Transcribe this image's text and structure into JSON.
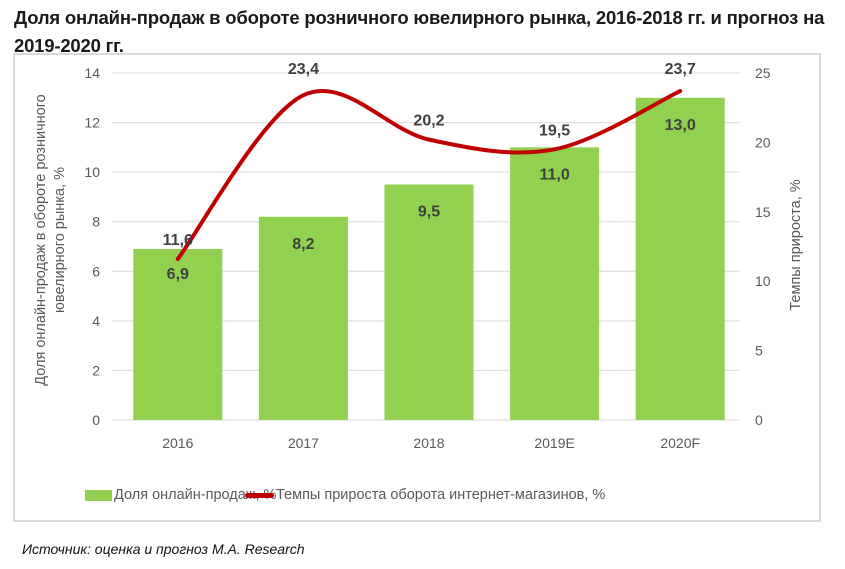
{
  "title": "Доля онлайн-продаж в обороте розничного ювелирного рынка, 2016-2018 гг. и прогноз на 2019-2020 гг.",
  "source": "Источник: оценка и прогноз М.А. Research",
  "colors": {
    "bar": "#92d050",
    "line": "#c00000",
    "grid": "#d9d9d9",
    "text": "#595959",
    "label": "#404040"
  },
  "chart_data": {
    "type": "bar",
    "categories": [
      "2016",
      "2017",
      "2018",
      "2019E",
      "2020F"
    ],
    "series": [
      {
        "name": "Доля онлайн-продаж, %",
        "type": "bar",
        "axis": "left",
        "values": [
          6.9,
          8.2,
          9.5,
          11.0,
          13.0
        ],
        "labels": [
          "6,9",
          "8,2",
          "9,5",
          "11,0",
          "13,0"
        ]
      },
      {
        "name": "Темпы прироста оборота интернет-магазинов, %",
        "type": "line",
        "axis": "right",
        "values": [
          11.6,
          23.4,
          20.2,
          19.5,
          23.7
        ],
        "labels": [
          "11,6",
          "23,4",
          "20,2",
          "19,5",
          "23,7"
        ]
      }
    ],
    "ylabel": "Доля онлайн-продаж в обороте розничного ювелирного рынка, %",
    "ylabel_right": "Темпы прироста, %",
    "ylim": [
      0,
      14
    ],
    "yticks": [
      "0",
      "2",
      "4",
      "6",
      "8",
      "10",
      "12",
      "14"
    ],
    "ylim_right": [
      0,
      25
    ],
    "yticks_right": [
      "0",
      "5",
      "10",
      "15",
      "20",
      "25"
    ],
    "grid": true,
    "legend": "bottom"
  }
}
